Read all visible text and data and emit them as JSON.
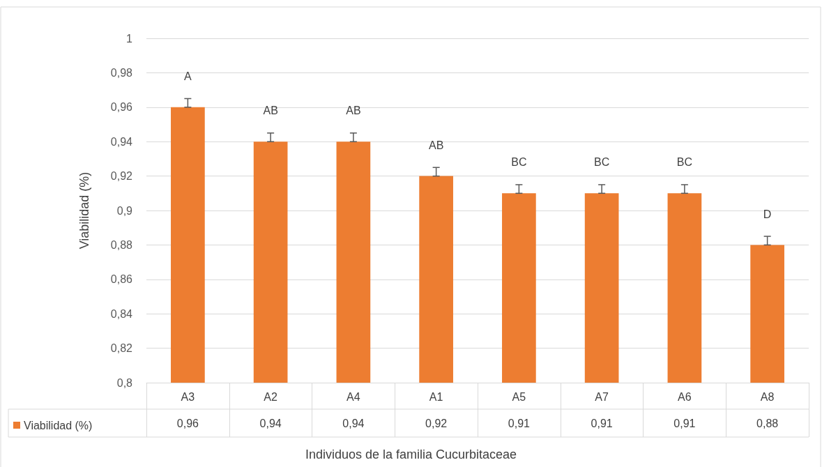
{
  "chart_data": {
    "type": "bar",
    "xlabel": "Individuos de la familia Cucurbitaceae",
    "ylabel": "Viabilidad (%)",
    "categories": [
      "A3",
      "A2",
      "A4",
      "A1",
      "A5",
      "A7",
      "A6",
      "A8"
    ],
    "series": [
      {
        "name": "Viabilidad (%)",
        "color": "#ed7d31",
        "values": [
          0.96,
          0.94,
          0.94,
          0.92,
          0.91,
          0.91,
          0.91,
          0.88
        ],
        "value_labels": [
          "0,96",
          "0,94",
          "0,94",
          "0,92",
          "0,91",
          "0,91",
          "0,91",
          "0,88"
        ],
        "errors": [
          [
            0.96,
            0.965
          ],
          [
            0.94,
            0.945
          ],
          [
            0.94,
            0.945
          ],
          [
            0.92,
            0.925
          ],
          [
            0.91,
            0.915
          ],
          [
            0.91,
            0.915
          ],
          [
            0.91,
            0.915
          ],
          [
            0.88,
            0.885
          ]
        ]
      }
    ],
    "ylim": [
      0.8,
      1
    ],
    "yticks": [
      {
        "value": 0.8,
        "label": "0,8"
      },
      {
        "value": 0.82,
        "label": "0,82"
      },
      {
        "value": 0.84,
        "label": "0,84"
      },
      {
        "value": 0.86,
        "label": "0,86"
      },
      {
        "value": 0.88,
        "label": "0,88"
      },
      {
        "value": 0.9,
        "label": "0,9"
      },
      {
        "value": 0.92,
        "label": "0,92"
      },
      {
        "value": 0.94,
        "label": "0,94"
      },
      {
        "value": 0.96,
        "label": "0,96"
      },
      {
        "value": 0.98,
        "label": "0,98"
      },
      1
    ],
    "grid": "y",
    "legend": "bottom left",
    "annotations": [
      "A",
      "AB",
      "AB",
      "AB",
      "BC",
      "BC",
      "BC",
      "D"
    ]
  }
}
